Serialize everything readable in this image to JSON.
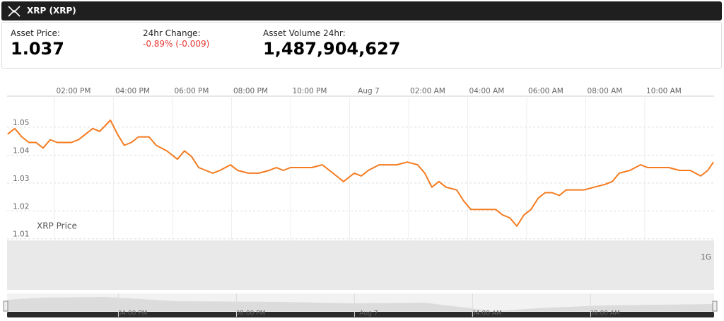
{
  "header": {
    "title": "XRP (XRP)",
    "price_label": "Asset Price:",
    "price": "1.037",
    "change_label": "24hr Change:",
    "change": "-0.89% (-0.009)",
    "volume_label": "Asset Volume 24hr:",
    "volume": "1,487,904,627"
  },
  "chart_data": {
    "type": "line",
    "xlim": [
      11.75,
      35.75
    ],
    "xticks": [
      {
        "value": 14,
        "label": "02:00 PM"
      },
      {
        "value": 16,
        "label": "04:00 PM"
      },
      {
        "value": 18,
        "label": "06:00 PM"
      },
      {
        "value": 20,
        "label": "08:00 PM"
      },
      {
        "value": 22,
        "label": "10:00 PM"
      },
      {
        "value": 24,
        "label": "Aug 7"
      },
      {
        "value": 26,
        "label": "02:00 AM"
      },
      {
        "value": 28,
        "label": "04:00 AM"
      },
      {
        "value": 30,
        "label": "06:00 AM"
      },
      {
        "value": 32,
        "label": "08:00 AM"
      },
      {
        "value": 34,
        "label": "10:00 AM"
      }
    ],
    "navigator_ticks": [
      {
        "value": 16,
        "label": "04:00 PM"
      },
      {
        "value": 20,
        "label": "08:00 PM"
      },
      {
        "value": 24,
        "label": "Aug 7"
      },
      {
        "value": 28,
        "label": "04:00 AM"
      },
      {
        "value": 32,
        "label": "08:00 AM"
      }
    ],
    "ylim": [
      1.0079,
      1.0586
    ],
    "yticks": [
      1.01,
      1.02,
      1.03,
      1.04,
      1.05
    ],
    "grid": true,
    "volume_tick": "1G",
    "x": [
      11.77,
      12.01,
      12.25,
      12.49,
      12.73,
      12.97,
      13.21,
      13.45,
      13.69,
      13.93,
      14.17,
      14.41,
      14.65,
      14.89,
      15.25,
      15.49,
      15.72,
      15.96,
      16.2,
      16.56,
      16.8,
      17.16,
      17.52,
      17.76,
      18.0,
      18.24,
      18.48,
      18.72,
      18.96,
      19.32,
      19.56,
      19.92,
      20.28,
      20.63,
      20.87,
      21.11,
      21.35,
      21.59,
      21.83,
      22.07,
      22.43,
      22.79,
      23.15,
      23.51,
      23.75,
      23.99,
      24.35,
      24.59,
      24.95,
      25.31,
      25.66,
      25.9,
      26.14,
      26.38,
      26.62,
      26.98,
      27.22,
      27.46,
      27.7,
      28.06,
      28.3,
      28.54,
      28.78,
      29.02,
      29.26,
      29.5,
      29.74,
      29.98,
      30.22,
      30.46,
      30.69,
      31.05,
      31.29,
      31.65,
      32.01,
      32.25,
      32.49,
      32.85,
      33.21,
      33.45,
      33.81,
      34.17,
      34.53,
      34.89,
      35.25,
      35.49,
      35.68
    ],
    "series": [
      {
        "name": "XRP Price",
        "color": "#f47b20",
        "values": [
          1.046,
          1.048,
          1.045,
          1.043,
          1.043,
          1.041,
          1.044,
          1.043,
          1.043,
          1.043,
          1.044,
          1.046,
          1.048,
          1.047,
          1.051,
          1.046,
          1.042,
          1.043,
          1.045,
          1.045,
          1.042,
          1.04,
          1.037,
          1.04,
          1.038,
          1.034,
          1.033,
          1.032,
          1.033,
          1.035,
          1.033,
          1.032,
          1.032,
          1.033,
          1.034,
          1.033,
          1.034,
          1.034,
          1.034,
          1.034,
          1.035,
          1.032,
          1.029,
          1.032,
          1.031,
          1.033,
          1.035,
          1.035,
          1.035,
          1.036,
          1.035,
          1.032,
          1.027,
          1.029,
          1.027,
          1.026,
          1.022,
          1.019,
          1.019,
          1.019,
          1.019,
          1.017,
          1.016,
          1.013,
          1.017,
          1.019,
          1.023,
          1.025,
          1.025,
          1.024,
          1.026,
          1.026,
          1.026,
          1.027,
          1.028,
          1.029,
          1.032,
          1.033,
          1.035,
          1.034,
          1.034,
          1.034,
          1.033,
          1.033,
          1.031,
          1.033,
          1.036
        ]
      }
    ]
  }
}
